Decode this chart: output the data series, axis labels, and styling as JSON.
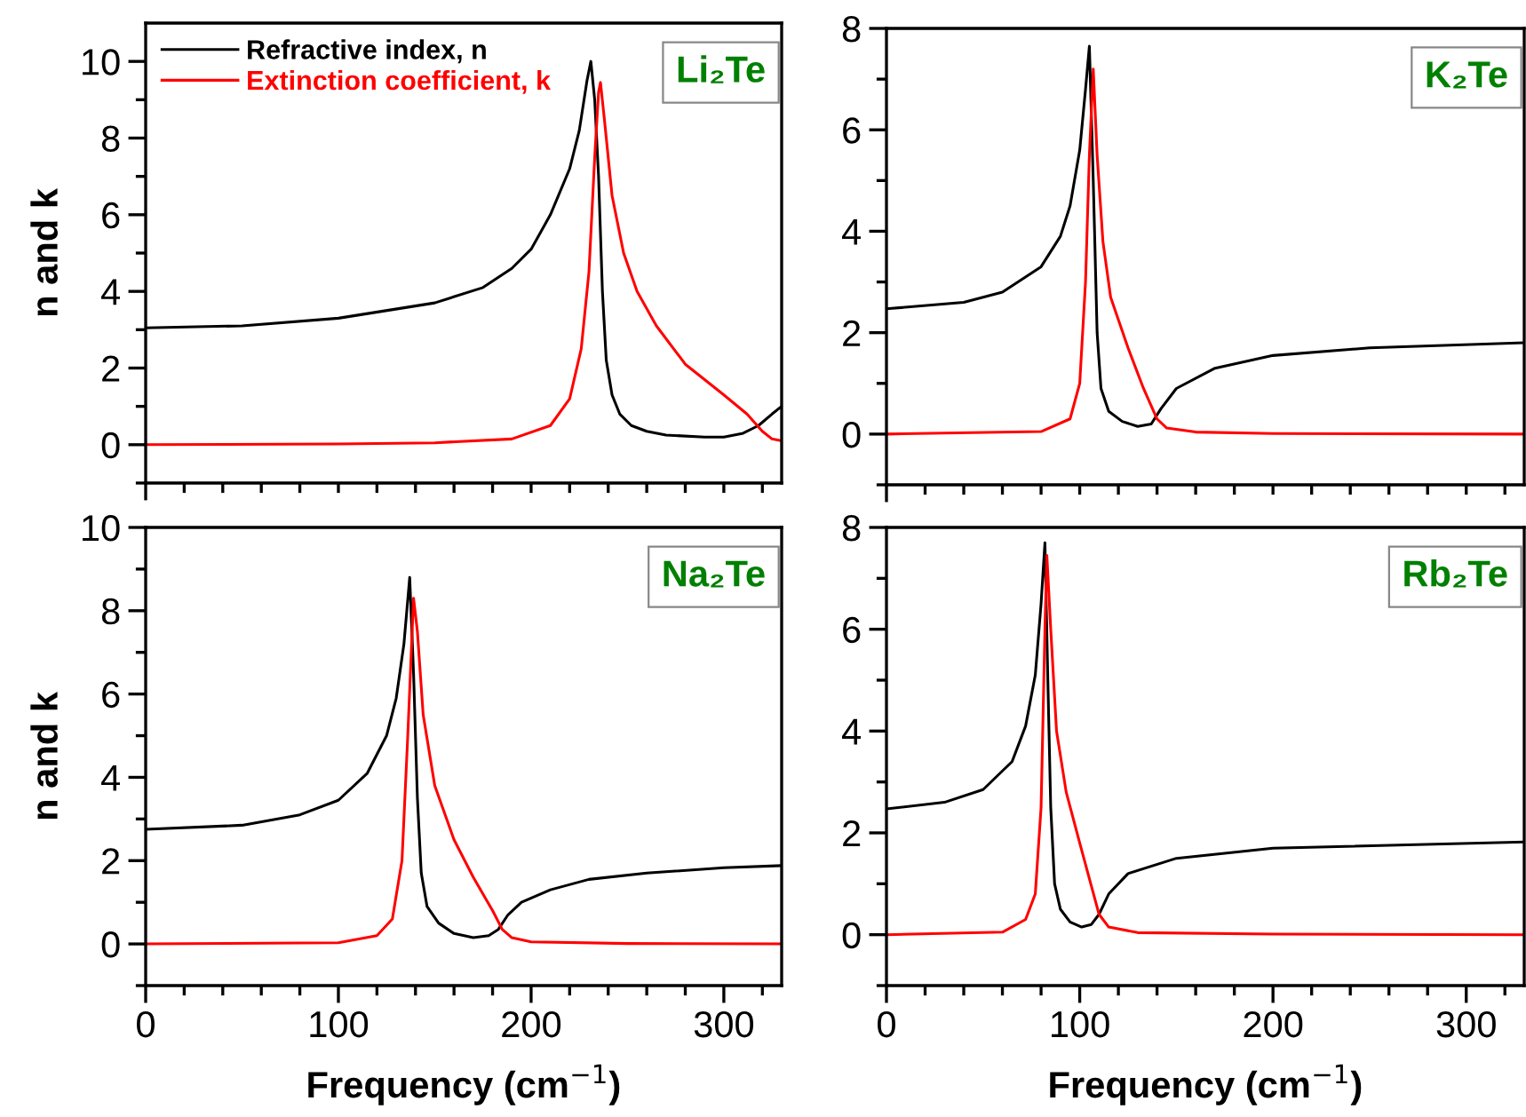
{
  "chart_data": [
    {
      "type": "line",
      "ylabel": "n and k",
      "xlim": [
        0,
        330
      ],
      "ylim": [
        -1,
        11
      ],
      "xticks": [
        0,
        {
          "value": 20,
          "label": null
        },
        {
          "value": 40,
          "label": null
        },
        {
          "value": 60,
          "label": null
        },
        {
          "value": 80,
          "label": null
        },
        {
          "value": 100,
          "label": null
        },
        {
          "value": 120,
          "label": null
        },
        {
          "value": 140,
          "label": null
        },
        {
          "value": 160,
          "label": null
        },
        {
          "value": 180,
          "label": null
        },
        {
          "value": 200,
          "label": null
        },
        {
          "value": 220,
          "label": null
        },
        {
          "value": 240,
          "label": null
        },
        {
          "value": 260,
          "label": null
        },
        {
          "value": 280,
          "label": null
        },
        {
          "value": 300,
          "label": null
        },
        {
          "value": 320,
          "label": null
        }
      ],
      "yticks": [
        {
          "value": -1,
          "label": null
        },
        0,
        {
          "value": 1,
          "label": null
        },
        2,
        {
          "value": 3,
          "label": null
        },
        4,
        {
          "value": 5,
          "label": null
        },
        6,
        {
          "value": 7,
          "label": null
        },
        8,
        {
          "value": 9,
          "label": null
        },
        10
      ],
      "tick_labels": "y",
      "legend": "top left",
      "grid": false,
      "annotations": [
        "Li₂Te"
      ],
      "series": [
        {
          "name": "Refractive index, n",
          "color": "#000000",
          "x": [
            0,
            50,
            100,
            150,
            175,
            190,
            200,
            210,
            220,
            225,
            229,
            231,
            233,
            235,
            237,
            239,
            242,
            246,
            252,
            260,
            270,
            290,
            300,
            310,
            318,
            325,
            330
          ],
          "values": [
            3.05,
            3.1,
            3.3,
            3.7,
            4.1,
            4.6,
            5.1,
            6.0,
            7.2,
            8.2,
            9.5,
            10.0,
            9.0,
            7.0,
            4.0,
            2.2,
            1.3,
            0.8,
            0.5,
            0.35,
            0.25,
            0.2,
            0.2,
            0.3,
            0.5,
            0.8,
            1.0
          ]
        },
        {
          "name": "Extinction coefficient, k",
          "color": "#ff0000",
          "x": [
            0,
            100,
            150,
            190,
            210,
            220,
            226,
            230,
            233,
            235,
            236,
            238,
            242,
            248,
            255,
            265,
            280,
            300,
            312,
            320,
            325,
            330
          ],
          "values": [
            0,
            0.02,
            0.05,
            0.15,
            0.5,
            1.2,
            2.5,
            4.5,
            7.5,
            9.2,
            9.45,
            8.5,
            6.5,
            5.0,
            4.0,
            3.1,
            2.1,
            1.3,
            0.8,
            0.35,
            0.15,
            0.1
          ]
        }
      ]
    },
    {
      "type": "line",
      "xlim": [
        0,
        330
      ],
      "ylim": [
        -1,
        8
      ],
      "xticks": [
        0,
        {
          "value": 20,
          "label": null
        },
        {
          "value": 40,
          "label": null
        },
        {
          "value": 60,
          "label": null
        },
        {
          "value": 80,
          "label": null
        },
        {
          "value": 100,
          "label": null
        },
        {
          "value": 120,
          "label": null
        },
        {
          "value": 140,
          "label": null
        },
        {
          "value": 160,
          "label": null
        },
        {
          "value": 180,
          "label": null
        },
        {
          "value": 200,
          "label": null
        },
        {
          "value": 220,
          "label": null
        },
        {
          "value": 240,
          "label": null
        },
        {
          "value": 260,
          "label": null
        },
        {
          "value": 280,
          "label": null
        },
        {
          "value": 300,
          "label": null
        },
        {
          "value": 320,
          "label": null
        }
      ],
      "yticks": [
        {
          "value": -1,
          "label": null
        },
        0,
        {
          "value": 1,
          "label": null
        },
        2,
        {
          "value": 3,
          "label": null
        },
        4,
        {
          "value": 5,
          "label": null
        },
        6,
        {
          "value": 7,
          "label": null
        },
        8
      ],
      "tick_labels": "y",
      "grid": false,
      "annotations": [
        "K₂Te"
      ],
      "series": [
        {
          "color": "#000000",
          "x": [
            0,
            40,
            60,
            80,
            90,
            95,
            100,
            103,
            105,
            107,
            109,
            111,
            115,
            122,
            130,
            137,
            142,
            150,
            170,
            200,
            250,
            330
          ],
          "values": [
            2.47,
            2.6,
            2.8,
            3.3,
            3.9,
            4.5,
            5.6,
            6.8,
            7.65,
            5.0,
            2.0,
            0.9,
            0.45,
            0.25,
            0.15,
            0.2,
            0.5,
            0.9,
            1.3,
            1.55,
            1.7,
            1.8
          ]
        },
        {
          "color": "#ff0000",
          "x": [
            0,
            80,
            95,
            100,
            103,
            105,
            107,
            109,
            112,
            116,
            125,
            133,
            140,
            145,
            160,
            200,
            330
          ],
          "values": [
            0,
            0.05,
            0.3,
            1.0,
            3.0,
            5.5,
            7.2,
            5.5,
            3.8,
            2.7,
            1.7,
            0.9,
            0.3,
            0.12,
            0.04,
            0.01,
            0
          ]
        }
      ]
    },
    {
      "type": "line",
      "ylabel": "n and k",
      "xlabel": "Frequency (cm$^{−1}$)",
      "xlim": [
        0,
        330
      ],
      "ylim": [
        -1,
        10
      ],
      "xticks": [
        0,
        {
          "value": 20,
          "label": null
        },
        {
          "value": 40,
          "label": null
        },
        {
          "value": 60,
          "label": null
        },
        {
          "value": 80,
          "label": null
        },
        100,
        {
          "value": 120,
          "label": null
        },
        {
          "value": 140,
          "label": null
        },
        {
          "value": 160,
          "label": null
        },
        {
          "value": 180,
          "label": null
        },
        200,
        {
          "value": 220,
          "label": null
        },
        {
          "value": 240,
          "label": null
        },
        {
          "value": 260,
          "label": null
        },
        {
          "value": 280,
          "label": null
        },
        300,
        {
          "value": 320,
          "label": null
        }
      ],
      "yticks": [
        {
          "value": -1,
          "label": null
        },
        0,
        {
          "value": 1,
          "label": null
        },
        2,
        {
          "value": 3,
          "label": null
        },
        4,
        {
          "value": 5,
          "label": null
        },
        6,
        {
          "value": 7,
          "label": null
        },
        8,
        {
          "value": 9,
          "label": null
        },
        10
      ],
      "grid": false,
      "annotations": [
        "Na₂Te"
      ],
      "series": [
        {
          "color": "#000000",
          "x": [
            0,
            50,
            80,
            100,
            115,
            125,
            130,
            134,
            137,
            139,
            141,
            143,
            146,
            152,
            160,
            170,
            178,
            183,
            188,
            195,
            210,
            230,
            260,
            300,
            330
          ],
          "values": [
            2.75,
            2.85,
            3.1,
            3.45,
            4.1,
            5.0,
            5.9,
            7.2,
            8.8,
            6.5,
            3.5,
            1.7,
            0.9,
            0.5,
            0.25,
            0.15,
            0.2,
            0.35,
            0.7,
            1.0,
            1.3,
            1.55,
            1.7,
            1.83,
            1.88
          ]
        },
        {
          "color": "#ff0000",
          "x": [
            0,
            100,
            120,
            128,
            133,
            136,
            139,
            141,
            144,
            150,
            160,
            170,
            180,
            185,
            190,
            200,
            250,
            330
          ],
          "values": [
            0,
            0.03,
            0.2,
            0.6,
            2.0,
            5.0,
            8.3,
            7.5,
            5.5,
            3.8,
            2.5,
            1.6,
            0.8,
            0.35,
            0.15,
            0.05,
            0.01,
            0
          ]
        }
      ]
    },
    {
      "type": "line",
      "xlabel": "Frequency (cm$^{−1}$)",
      "xlim": [
        0,
        330
      ],
      "ylim": [
        -1,
        8
      ],
      "xticks": [
        0,
        {
          "value": 20,
          "label": null
        },
        {
          "value": 40,
          "label": null
        },
        {
          "value": 60,
          "label": null
        },
        {
          "value": 80,
          "label": null
        },
        100,
        {
          "value": 120,
          "label": null
        },
        {
          "value": 140,
          "label": null
        },
        {
          "value": 160,
          "label": null
        },
        {
          "value": 180,
          "label": null
        },
        200,
        {
          "value": 220,
          "label": null
        },
        {
          "value": 240,
          "label": null
        },
        {
          "value": 260,
          "label": null
        },
        {
          "value": 280,
          "label": null
        },
        300,
        {
          "value": 320,
          "label": null
        }
      ],
      "yticks": [
        {
          "value": -1,
          "label": null
        },
        0,
        {
          "value": 1,
          "label": null
        },
        2,
        {
          "value": 3,
          "label": null
        },
        4,
        {
          "value": 5,
          "label": null
        },
        6,
        {
          "value": 7,
          "label": null
        },
        8
      ],
      "grid": false,
      "annotations": [
        "Rb₂Te"
      ],
      "series": [
        {
          "color": "#000000",
          "x": [
            0,
            30,
            50,
            65,
            72,
            77,
            80,
            82,
            83.5,
            85,
            87,
            90,
            95,
            101,
            106,
            110,
            115,
            125,
            150,
            200,
            330
          ],
          "values": [
            2.47,
            2.6,
            2.85,
            3.4,
            4.1,
            5.1,
            6.5,
            7.7,
            5.0,
            2.5,
            1.0,
            0.5,
            0.25,
            0.15,
            0.2,
            0.4,
            0.8,
            1.2,
            1.5,
            1.7,
            1.82
          ]
        },
        {
          "color": "#ff0000",
          "x": [
            0,
            60,
            72,
            77,
            80,
            82,
            83,
            85,
            88,
            93,
            100,
            105,
            110,
            115,
            130,
            200,
            330
          ],
          "values": [
            0,
            0.05,
            0.3,
            0.8,
            2.5,
            6.0,
            7.45,
            6.0,
            4.0,
            2.8,
            1.8,
            1.1,
            0.4,
            0.15,
            0.04,
            0.01,
            0
          ]
        }
      ]
    }
  ]
}
